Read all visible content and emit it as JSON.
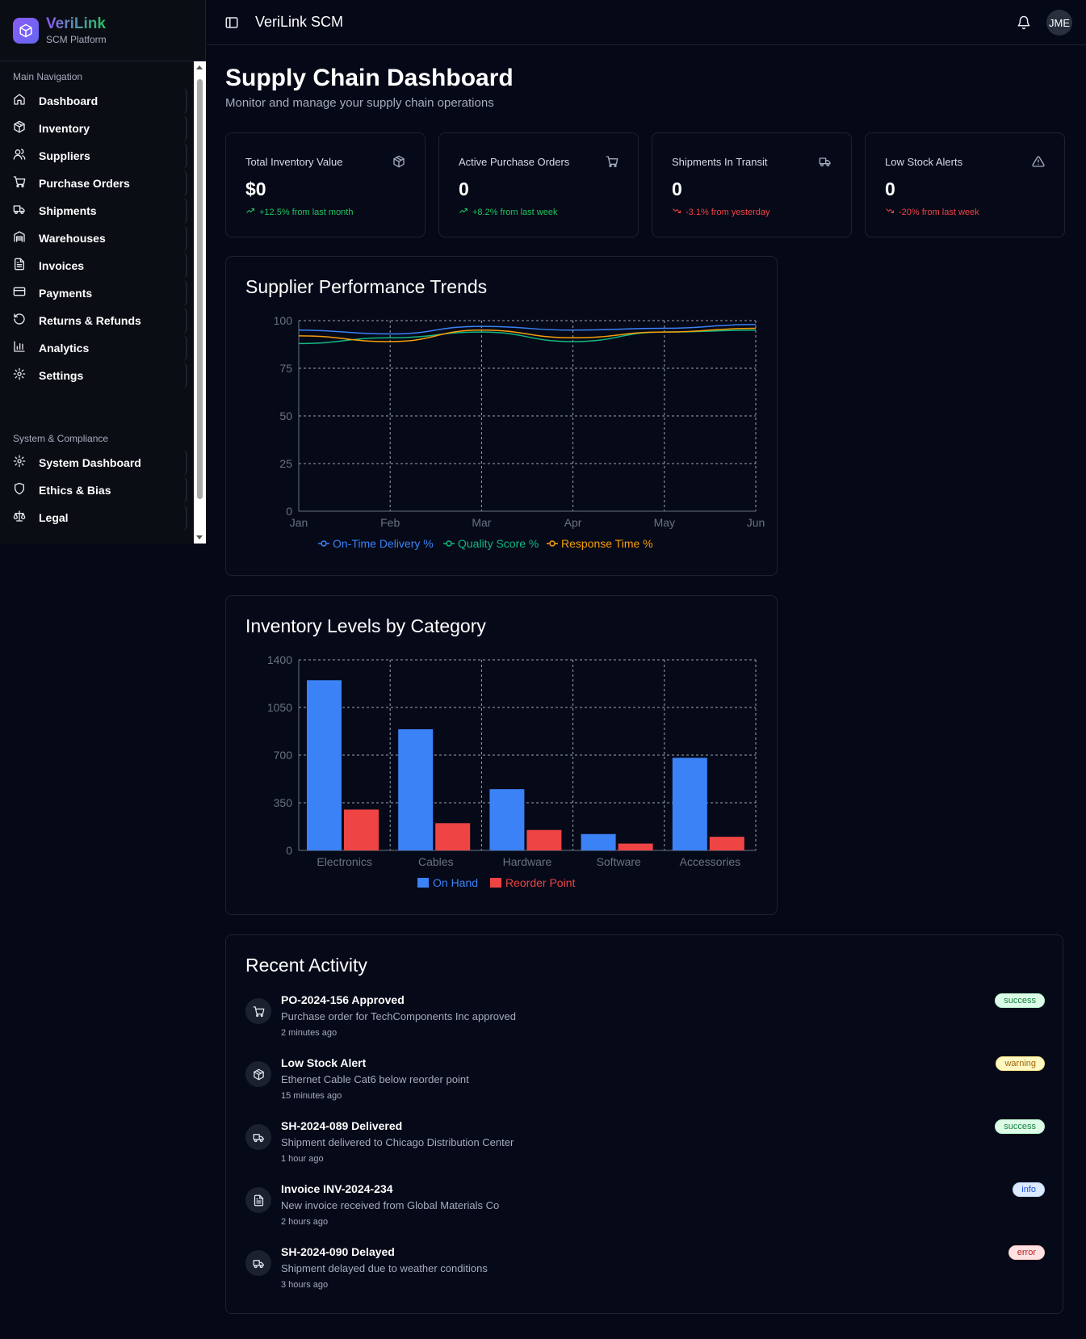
{
  "brand": {
    "name": "VeriLink",
    "subtitle": "SCM Platform"
  },
  "topbar": {
    "title": "VeriLink SCM",
    "avatar_initials": "JME"
  },
  "sidebar": {
    "main_label": "Main Navigation",
    "main_items": [
      {
        "label": "Dashboard",
        "icon": "home-icon"
      },
      {
        "label": "Inventory",
        "icon": "package-icon"
      },
      {
        "label": "Suppliers",
        "icon": "users-icon"
      },
      {
        "label": "Purchase Orders",
        "icon": "cart-icon"
      },
      {
        "label": "Shipments",
        "icon": "truck-icon"
      },
      {
        "label": "Warehouses",
        "icon": "warehouse-icon"
      },
      {
        "label": "Invoices",
        "icon": "file-icon"
      },
      {
        "label": "Payments",
        "icon": "credit-card-icon"
      },
      {
        "label": "Returns & Refunds",
        "icon": "rotate-icon"
      },
      {
        "label": "Analytics",
        "icon": "bar-chart-icon"
      },
      {
        "label": "Settings",
        "icon": "gear-icon"
      }
    ],
    "system_label": "System & Compliance",
    "system_items": [
      {
        "label": "System Dashboard",
        "icon": "gear-icon"
      },
      {
        "label": "Ethics & Bias",
        "icon": "shield-icon"
      },
      {
        "label": "Legal",
        "icon": "scale-icon"
      }
    ]
  },
  "page": {
    "title": "Supply Chain Dashboard",
    "subtitle": "Monitor and manage your supply chain operations"
  },
  "stats": [
    {
      "label": "Total Inventory Value",
      "value": "$0",
      "trend": "+12.5% from last month",
      "direction": "up",
      "icon": "package-icon"
    },
    {
      "label": "Active Purchase Orders",
      "value": "0",
      "trend": "+8.2% from last week",
      "direction": "up",
      "icon": "cart-icon"
    },
    {
      "label": "Shipments In Transit",
      "value": "0",
      "trend": "-3.1% from yesterday",
      "direction": "down",
      "icon": "truck-icon"
    },
    {
      "label": "Low Stock Alerts",
      "value": "0",
      "trend": "-20% from last week",
      "direction": "down",
      "icon": "alert-triangle-icon"
    }
  ],
  "chart_data": [
    {
      "type": "line",
      "title": "Supplier Performance Trends",
      "categories": [
        "Jan",
        "Feb",
        "Mar",
        "Apr",
        "May",
        "Jun"
      ],
      "ylim": [
        0,
        100
      ],
      "yticks": [
        0,
        25,
        50,
        75,
        100
      ],
      "grid": true,
      "legend": "bottom",
      "series": [
        {
          "name": "On-Time Delivery %",
          "color": "#3b82f6",
          "values": [
            95,
            93,
            97,
            95,
            96,
            98
          ]
        },
        {
          "name": "Quality Score %",
          "color": "#10b981",
          "values": [
            88,
            91,
            94,
            89,
            94,
            95
          ]
        },
        {
          "name": "Response Time %",
          "color": "#f59e0b",
          "values": [
            92,
            89,
            95,
            91,
            94,
            96
          ]
        }
      ]
    },
    {
      "type": "bar",
      "title": "Inventory Levels by Category",
      "categories": [
        "Electronics",
        "Cables",
        "Hardware",
        "Software",
        "Accessories"
      ],
      "ylim": [
        0,
        1400
      ],
      "yticks": [
        0,
        350,
        700,
        1050,
        1400
      ],
      "grid": true,
      "legend": "bottom",
      "series": [
        {
          "name": "On Hand",
          "color": "#3b82f6",
          "values": [
            1250,
            890,
            450,
            120,
            680
          ]
        },
        {
          "name": "Reorder Point",
          "color": "#ef4444",
          "values": [
            300,
            200,
            150,
            50,
            100
          ]
        }
      ]
    }
  ],
  "activity": {
    "title": "Recent Activity",
    "items": [
      {
        "title": "PO-2024-156 Approved",
        "desc": "Purchase order for TechComponents Inc approved",
        "time": "2 minutes ago",
        "status": "success",
        "icon": "cart-icon"
      },
      {
        "title": "Low Stock Alert",
        "desc": "Ethernet Cable Cat6 below reorder point",
        "time": "15 minutes ago",
        "status": "warning",
        "icon": "package-icon"
      },
      {
        "title": "SH-2024-089 Delivered",
        "desc": "Shipment delivered to Chicago Distribution Center",
        "time": "1 hour ago",
        "status": "success",
        "icon": "truck-icon"
      },
      {
        "title": "Invoice INV-2024-234",
        "desc": "New invoice received from Global Materials Co",
        "time": "2 hours ago",
        "status": "info",
        "icon": "file-icon"
      },
      {
        "title": "SH-2024-090 Delayed",
        "desc": "Shipment delayed due to weather conditions",
        "time": "3 hours ago",
        "status": "error",
        "icon": "truck-icon"
      }
    ]
  }
}
